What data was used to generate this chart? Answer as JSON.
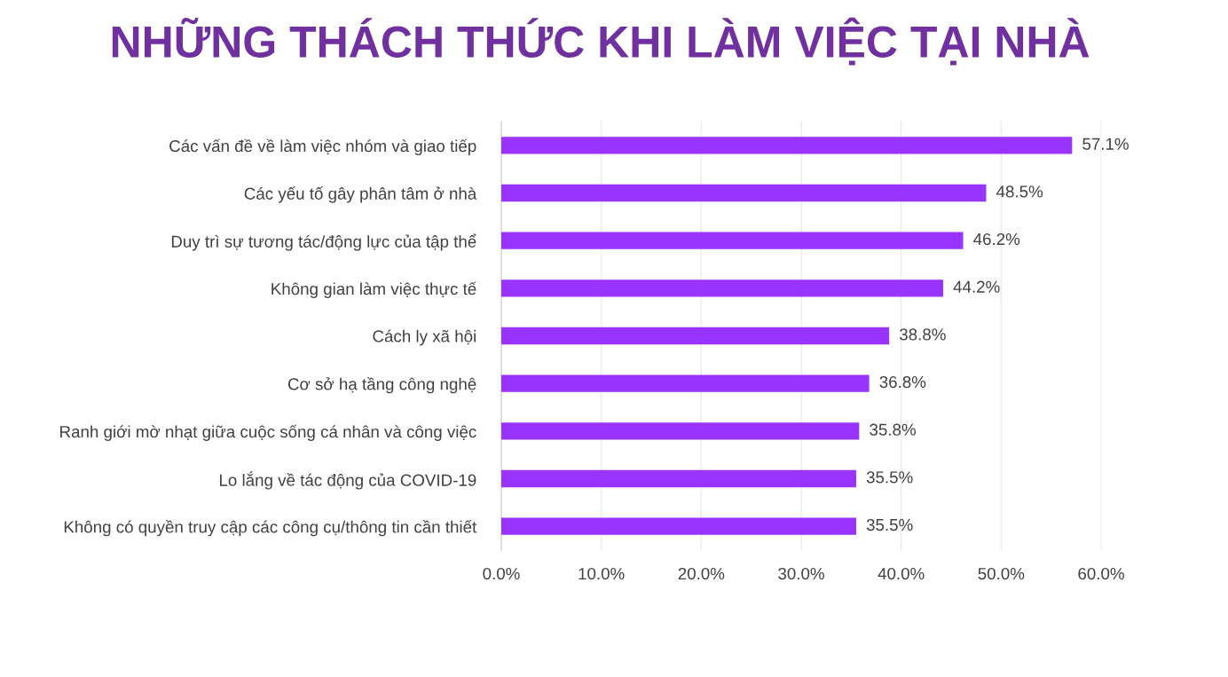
{
  "chart_data": {
    "type": "bar",
    "orientation": "horizontal",
    "title": "NHỮNG THÁCH THỨC KHI LÀM VIỆC TẠI NHÀ",
    "categories": [
      "Các vấn đề về làm việc nhóm và giao tiếp",
      "Các yếu tố gây phân tâm ở nhà",
      "Duy trì sự tương tác/động lực của tập thể",
      "Không gian làm việc thực tế",
      "Cách ly xã hội",
      "Cơ sở hạ tầng công nghệ",
      "Ranh giới mờ nhạt giữa cuộc sống cá nhân và công việc",
      "Lo lắng về tác động của COVID-19",
      "Không có quyền truy cập các công cụ/thông tin cần thiết"
    ],
    "values": [
      57.1,
      48.5,
      46.2,
      44.2,
      38.8,
      36.8,
      35.8,
      35.5,
      35.5
    ],
    "value_labels": [
      "57.1%",
      "48.5%",
      "46.2%",
      "44.2%",
      "38.8%",
      "36.8%",
      "35.8%",
      "35.5%",
      "35.5%"
    ],
    "color": "#9933ff",
    "xlim": [
      0,
      60
    ],
    "xticks": [
      {
        "value": 0,
        "label": "0.0%"
      },
      {
        "value": 10,
        "label": "10.0%"
      },
      {
        "value": 20,
        "label": "20.0%"
      },
      {
        "value": 30,
        "label": "30.0%"
      },
      {
        "value": 40,
        "label": "40.0%"
      },
      {
        "value": 50,
        "label": "50.0%"
      },
      {
        "value": 60,
        "label": "60.0%"
      }
    ],
    "grid": "x",
    "legend": false
  }
}
